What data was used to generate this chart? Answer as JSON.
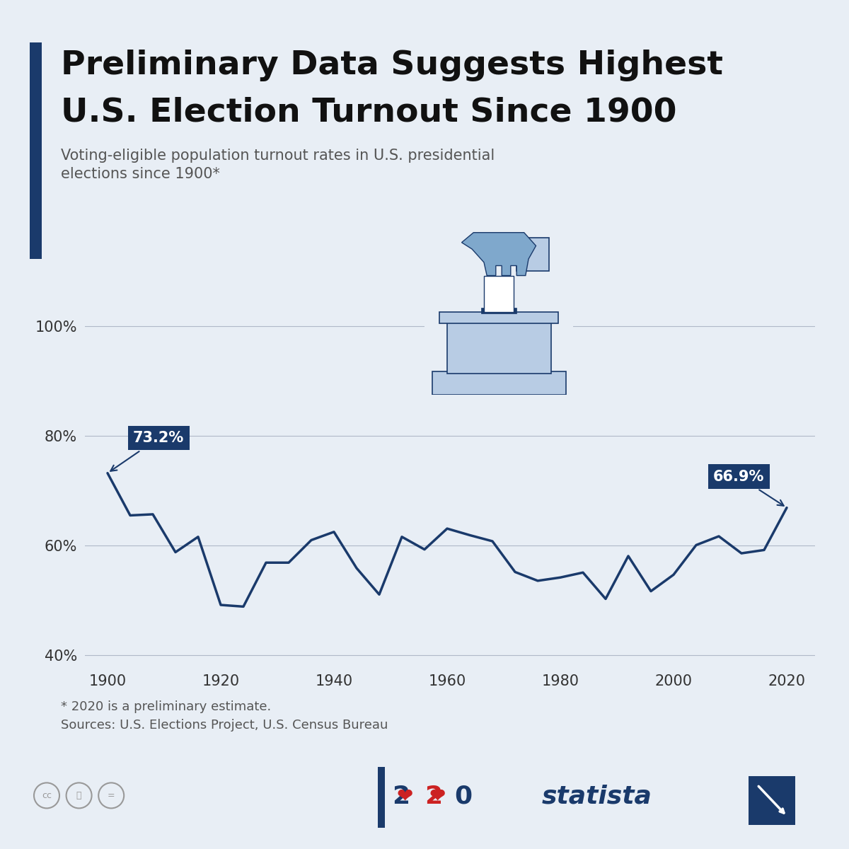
{
  "title_line1": "Preliminary Data Suggests Highest",
  "title_line2": "U.S. Election Turnout Since 1900",
  "subtitle": "Voting-eligible population turnout rates in U.S. presidential\nelections since 1900*",
  "footnote1": "* 2020 is a preliminary estimate.",
  "footnote2": "Sources: U.S. Elections Project, U.S. Census Bureau",
  "background_color": "#e8eef5",
  "line_color": "#1a3a6b",
  "years": [
    1900,
    1904,
    1908,
    1912,
    1916,
    1920,
    1924,
    1928,
    1932,
    1936,
    1940,
    1944,
    1948,
    1952,
    1956,
    1960,
    1964,
    1968,
    1972,
    1976,
    1980,
    1984,
    1988,
    1992,
    1996,
    2000,
    2004,
    2008,
    2012,
    2016,
    2020
  ],
  "values": [
    73.2,
    65.5,
    65.7,
    58.8,
    61.6,
    49.2,
    48.9,
    56.9,
    56.9,
    61.0,
    62.5,
    55.9,
    51.1,
    61.6,
    59.3,
    63.1,
    61.9,
    60.8,
    55.2,
    53.6,
    54.2,
    55.1,
    50.3,
    58.1,
    51.7,
    54.7,
    60.1,
    61.7,
    58.6,
    59.2,
    66.9
  ],
  "ylim": [
    38,
    106
  ],
  "yticks": [
    40,
    60,
    80,
    100
  ],
  "ytick_labels": [
    "40%",
    "60%",
    "80%",
    "100%"
  ],
  "xticks": [
    1900,
    1920,
    1940,
    1960,
    1980,
    2000,
    2020
  ],
  "annotation_color": "#1a3a6b",
  "accent_bar_color": "#1a3a6b",
  "icon_light": "#b8cce4",
  "icon_mid": "#7fa8cc",
  "icon_dark": "#1a3a6b"
}
